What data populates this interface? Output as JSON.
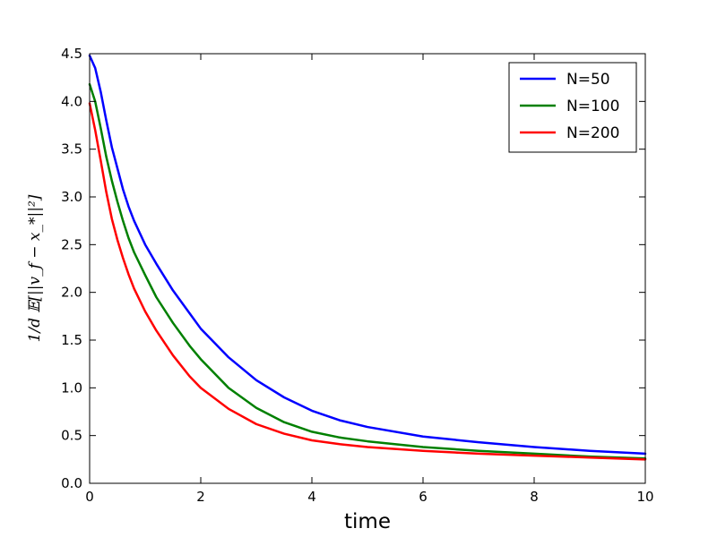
{
  "chart_data": {
    "type": "line",
    "xlabel": "time",
    "ylabel": "1/d 𝔼[||v_f − x_*||²]",
    "xlim": [
      0,
      10
    ],
    "ylim": [
      0,
      4.5
    ],
    "xticks": [
      "0",
      "2",
      "4",
      "6",
      "8",
      "10"
    ],
    "yticks": [
      "0.0",
      "0.5",
      "1.0",
      "1.5",
      "2.0",
      "2.5",
      "3.0",
      "3.5",
      "4.0",
      "4.5"
    ],
    "grid": false,
    "legend_position": "top-right",
    "x": [
      0,
      0.1,
      0.2,
      0.3,
      0.4,
      0.5,
      0.6,
      0.7,
      0.8,
      1.0,
      1.2,
      1.5,
      1.8,
      2.0,
      2.5,
      3.0,
      3.5,
      4.0,
      4.5,
      5.0,
      6.0,
      7.0,
      8.0,
      9.0,
      10.0
    ],
    "series": [
      {
        "name": "N=50",
        "color": "#0000ff",
        "values": [
          4.48,
          4.35,
          4.1,
          3.8,
          3.52,
          3.3,
          3.08,
          2.9,
          2.75,
          2.5,
          2.3,
          2.02,
          1.78,
          1.62,
          1.32,
          1.08,
          0.9,
          0.76,
          0.66,
          0.59,
          0.49,
          0.43,
          0.38,
          0.34,
          0.31
        ]
      },
      {
        "name": "N=100",
        "color": "#008000",
        "values": [
          4.18,
          4.0,
          3.72,
          3.42,
          3.17,
          2.95,
          2.75,
          2.57,
          2.42,
          2.18,
          1.95,
          1.68,
          1.44,
          1.3,
          1.0,
          0.79,
          0.64,
          0.54,
          0.48,
          0.44,
          0.38,
          0.34,
          0.31,
          0.28,
          0.26
        ]
      },
      {
        "name": "N=200",
        "color": "#ff0000",
        "values": [
          3.98,
          3.7,
          3.38,
          3.05,
          2.77,
          2.55,
          2.36,
          2.19,
          2.04,
          1.8,
          1.6,
          1.34,
          1.12,
          1.0,
          0.78,
          0.62,
          0.52,
          0.45,
          0.41,
          0.38,
          0.34,
          0.31,
          0.29,
          0.27,
          0.25
        ]
      }
    ]
  }
}
